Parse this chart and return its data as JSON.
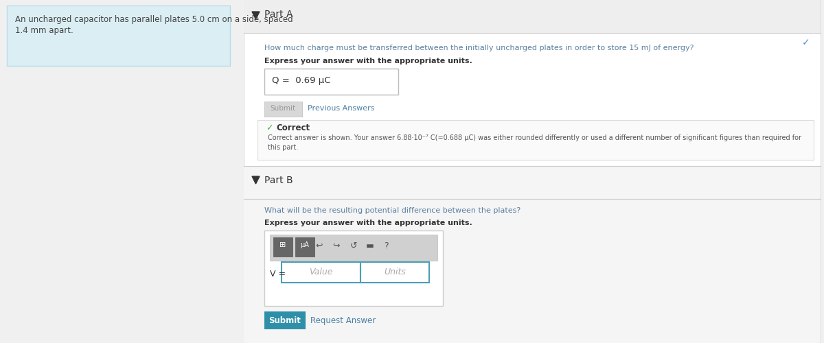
{
  "bg_color": "#f0f0f0",
  "white": "#ffffff",
  "left_box_bg": "#daeef3",
  "left_box_border": "#b8dde8",
  "left_box_text_line1": "An uncharged capacitor has parallel plates 5.0 cm on a side, spaced",
  "left_box_text_line2": "1.4 mm apart.",
  "left_box_text_color": "#444444",
  "part_a_label": "Part A",
  "part_b_label": "Part B",
  "part_arrow_color": "#333333",
  "question_a": "How much charge must be transferred between the initially uncharged plates in order to store 15 mJ of energy?",
  "question_a_color": "#5a7fa0",
  "express_text": "Express your answer with the appropriate units.",
  "express_color": "#333333",
  "answer_box_text": "Q =  0.69 μC",
  "answer_box_color": "#333333",
  "submit_btn_color": "#d8d8d8",
  "submit_btn_text": "Submit",
  "submit_btn_text_color": "#999999",
  "prev_answers_text": "Previous Answers",
  "prev_answers_color": "#4a7fa5",
  "correct_box_bg": "#fafafa",
  "correct_box_border": "#dddddd",
  "correct_icon_color": "#4caf50",
  "correct_label": "Correct",
  "correct_label_color": "#333333",
  "correct_detail_line1": "Correct answer is shown. Your answer 6.88·10⁻⁷ C(=0.688 μC) was either rounded differently or used a different number of significant figures than required for",
  "correct_detail_line2": "this part.",
  "correct_detail_color": "#555555",
  "check_color": "#4a90d9",
  "question_b": "What will be the resulting potential difference between the plates?",
  "question_b_color": "#5a7fa0",
  "value_placeholder": "Value",
  "units_placeholder": "Units",
  "placeholder_color": "#aaaaaa",
  "v_label": "V =",
  "input_border": "#4a9fb5",
  "toolbar_bg": "#d0d0d0",
  "toolbar_border": "#bbbbbb",
  "submit_b_bg": "#2e8fa8",
  "submit_b_text": "Submit",
  "submit_b_text_color": "#ffffff",
  "request_answer_text": "Request Answer",
  "request_answer_color": "#4a7fa5",
  "divider_color": "#cccccc",
  "section_header_bg": "#eeeeee",
  "right_panel_bg": "#ffffff",
  "right_panel_border": "#cccccc",
  "part_b_section_bg": "#f5f5f5"
}
